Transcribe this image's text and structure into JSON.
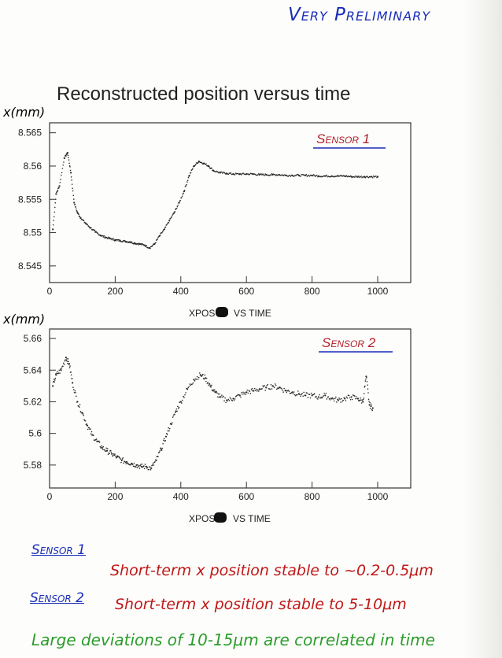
{
  "header": {
    "stamp": "Very Preliminary",
    "title": "Reconstructed position versus time"
  },
  "notes": {
    "sensor1_head": "Sensor 1",
    "sensor1_text": "Short-term x position stable to ~0.2-0.5μm",
    "sensor2_head": "Sensor 2",
    "sensor2_text": "Short-term x position stable to 5-10μm",
    "footer": "Large deviations of 10-15μm are correlated in time"
  },
  "colors": {
    "marker": "#2a2a2a",
    "sensor_label": "#b0202a",
    "stamp": "#1a2db8",
    "footer": "#2c9c2c"
  },
  "chart_data": [
    {
      "type": "scatter",
      "title": "Sensor 1",
      "ylabel": "x(mm)",
      "xlabel": "XPOS VS TIME",
      "xlim": [
        0,
        1000
      ],
      "ylim": [
        8.5425,
        8.5665
      ],
      "xticks": [
        0,
        200,
        400,
        600,
        800,
        1000
      ],
      "yticks": [
        8.545,
        8.55,
        8.555,
        8.56,
        8.565
      ],
      "ytick_labels": [
        "8.545",
        "8.55",
        "8.555",
        "8.56",
        "8.565"
      ],
      "series": [
        {
          "x": [
            10,
            20,
            30,
            45,
            55,
            65,
            75,
            85,
            95,
            110,
            125,
            140,
            155,
            170,
            185,
            200,
            215,
            230,
            245,
            260,
            275,
            290,
            305,
            320,
            335,
            350,
            365,
            380,
            395,
            410,
            425,
            440,
            455,
            470,
            485,
            500,
            520,
            540,
            560,
            580,
            600,
            620,
            640,
            660,
            680,
            700,
            720,
            740,
            760,
            780,
            800,
            820,
            840,
            860,
            880,
            900,
            920,
            940,
            960,
            980,
            1000
          ],
          "y": [
            8.5505,
            8.5558,
            8.557,
            8.5612,
            8.562,
            8.559,
            8.5545,
            8.553,
            8.5522,
            8.5514,
            8.5507,
            8.5501,
            8.5496,
            8.5493,
            8.5491,
            8.5489,
            8.5488,
            8.5487,
            8.5486,
            8.5484,
            8.5483,
            8.5481,
            8.5477,
            8.5483,
            8.5495,
            8.5505,
            8.5518,
            8.553,
            8.5545,
            8.5562,
            8.5585,
            8.56,
            8.5607,
            8.5604,
            8.56,
            8.5593,
            8.559,
            8.5589,
            8.5588,
            8.5588,
            8.5588,
            8.5588,
            8.5587,
            8.5587,
            8.5587,
            8.5587,
            8.5586,
            8.5586,
            8.5586,
            8.5586,
            8.5586,
            8.5585,
            8.5585,
            8.5585,
            8.5585,
            8.5585,
            8.5584,
            8.5584,
            8.5584,
            8.5584,
            8.5584
          ]
        }
      ]
    },
    {
      "type": "scatter",
      "title": "Sensor 2",
      "ylabel": "x(mm)",
      "xlabel": "XPOS VS TIME",
      "xlim": [
        0,
        1000
      ],
      "ylim": [
        5.5655,
        5.666
      ],
      "xticks": [
        0,
        200,
        400,
        600,
        800,
        1000
      ],
      "yticks": [
        5.58,
        5.6,
        5.62,
        5.64,
        5.66
      ],
      "ytick_labels": [
        "5.58",
        "5.6",
        "5.62",
        "5.64",
        "5.66"
      ],
      "series": [
        {
          "x": [
            10,
            20,
            35,
            50,
            60,
            70,
            85,
            100,
            115,
            130,
            145,
            160,
            175,
            190,
            205,
            220,
            235,
            250,
            265,
            280,
            295,
            310,
            325,
            340,
            355,
            370,
            385,
            400,
            420,
            440,
            460,
            475,
            490,
            505,
            520,
            540,
            560,
            580,
            600,
            620,
            640,
            660,
            680,
            700,
            720,
            740,
            760,
            780,
            800,
            820,
            840,
            860,
            880,
            900,
            920,
            940,
            955,
            965,
            975,
            985
          ],
          "y": [
            5.63,
            5.637,
            5.64,
            5.648,
            5.644,
            5.632,
            5.62,
            5.613,
            5.605,
            5.599,
            5.595,
            5.591,
            5.589,
            5.587,
            5.585,
            5.583,
            5.582,
            5.581,
            5.58,
            5.579,
            5.579,
            5.578,
            5.583,
            5.59,
            5.598,
            5.606,
            5.614,
            5.62,
            5.628,
            5.634,
            5.637,
            5.635,
            5.63,
            5.626,
            5.623,
            5.621,
            5.622,
            5.624,
            5.626,
            5.627,
            5.628,
            5.629,
            5.63,
            5.629,
            5.627,
            5.626,
            5.625,
            5.624,
            5.624,
            5.623,
            5.624,
            5.622,
            5.621,
            5.622,
            5.623,
            5.622,
            5.62,
            5.636,
            5.618,
            5.616
          ]
        }
      ]
    }
  ],
  "charts_meta": [
    {
      "ylabel_text": "x(mm)",
      "sensor_label": "Sensor 1",
      "xlabel_prefix": "XPOS",
      "xlabel_suffix": "VS TIME"
    },
    {
      "ylabel_text": "x(mm)",
      "sensor_label": "Sensor 2",
      "xlabel_prefix": "XPOS",
      "xlabel_suffix": "VS TIME"
    }
  ]
}
